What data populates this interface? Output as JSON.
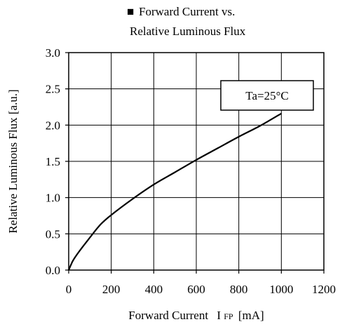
{
  "chart_data": {
    "type": "line",
    "title_marker": "■",
    "title_line1": "Forward Current vs.",
    "title_line2": "Relative Luminous Flux",
    "xlabel_main": "Forward Current",
    "xlabel_symbol": "I",
    "xlabel_subscript": "FP",
    "xlabel_unit": "[mA]",
    "ylabel": "Relative Luminous Flux [a.u.]",
    "xlim": [
      0,
      1200
    ],
    "ylim": [
      0,
      3.0
    ],
    "x_ticks": [
      "0",
      "200",
      "400",
      "600",
      "800",
      "1000",
      "1200"
    ],
    "y_ticks": [
      "0.0",
      "0.5",
      "1.0",
      "1.5",
      "2.0",
      "2.5",
      "3.0"
    ],
    "grid": true,
    "annotation": "Ta=25°C",
    "series": [
      {
        "x": [
          0,
          20,
          50,
          100,
          150,
          200,
          300,
          400,
          500,
          600,
          700,
          800,
          900,
          1000
        ],
        "y": [
          0.0,
          0.13,
          0.26,
          0.45,
          0.63,
          0.76,
          0.98,
          1.18,
          1.35,
          1.52,
          1.68,
          1.84,
          1.99,
          2.16
        ]
      }
    ]
  }
}
